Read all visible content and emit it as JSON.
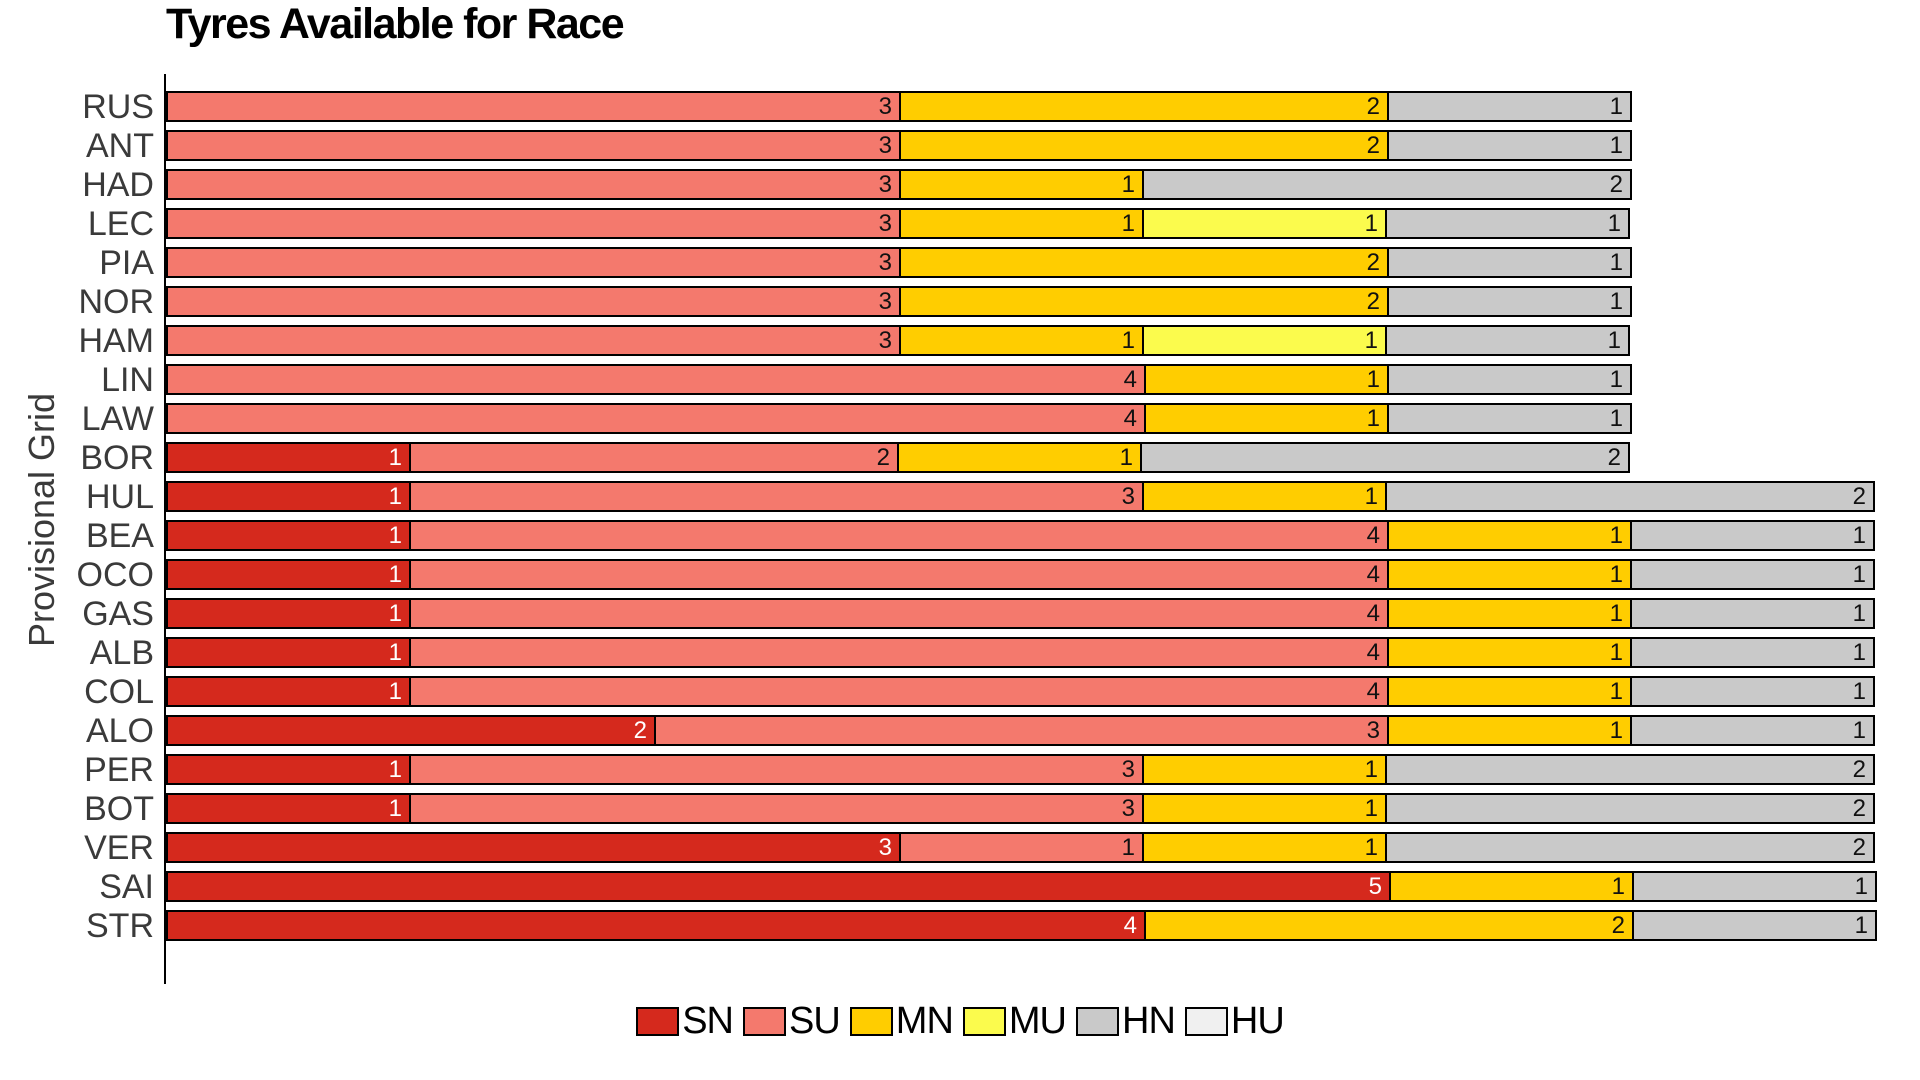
{
  "title": "Tyres Available for Race",
  "y_axis_label": "Provisional Grid",
  "legend": [
    {
      "code": "SN",
      "color": "#d5291d"
    },
    {
      "code": "SU",
      "color": "#f4796d"
    },
    {
      "code": "MN",
      "color": "#ffcd00"
    },
    {
      "code": "MU",
      "color": "#fbfb4d"
    },
    {
      "code": "HN",
      "color": "#c9c9c9"
    },
    {
      "code": "HU",
      "color": "#f0f0f0"
    }
  ],
  "chart_data": {
    "type": "bar",
    "orientation": "horizontal",
    "stacked": true,
    "title": "Tyres Available for Race",
    "ylabel": "Provisional Grid",
    "xlabel": "",
    "xlim": [
      0,
      7
    ],
    "grid": false,
    "legend_position": "bottom",
    "value_labels": "inside-end of each segment",
    "categories": [
      "RUS",
      "ANT",
      "HAD",
      "LEC",
      "PIA",
      "NOR",
      "HAM",
      "LIN",
      "LAW",
      "BOR",
      "HUL",
      "BEA",
      "OCO",
      "GAS",
      "ALB",
      "COL",
      "ALO",
      "PER",
      "BOT",
      "VER",
      "SAI",
      "STR"
    ],
    "series": [
      {
        "name": "SN",
        "color": "#d5291d",
        "label_color": "#ffffff",
        "values": [
          0,
          0,
          0,
          0,
          0,
          0,
          0,
          0,
          0,
          1,
          1,
          1,
          1,
          1,
          1,
          1,
          2,
          1,
          1,
          3,
          5,
          4
        ]
      },
      {
        "name": "SU",
        "color": "#f4796d",
        "label_color": "#111111",
        "values": [
          3,
          3,
          3,
          3,
          3,
          3,
          3,
          4,
          4,
          2,
          3,
          4,
          4,
          4,
          4,
          4,
          3,
          3,
          3,
          1,
          0,
          0
        ]
      },
      {
        "name": "MN",
        "color": "#ffcd00",
        "label_color": "#111111",
        "values": [
          2,
          2,
          1,
          1,
          2,
          2,
          1,
          1,
          1,
          1,
          1,
          1,
          1,
          1,
          1,
          1,
          1,
          1,
          1,
          1,
          1,
          2
        ]
      },
      {
        "name": "MU",
        "color": "#fbfb4d",
        "label_color": "#111111",
        "values": [
          0,
          0,
          0,
          1,
          0,
          0,
          1,
          0,
          0,
          0,
          0,
          0,
          0,
          0,
          0,
          0,
          0,
          0,
          0,
          0,
          0,
          0
        ]
      },
      {
        "name": "HN",
        "color": "#c9c9c9",
        "label_color": "#111111",
        "values": [
          1,
          1,
          2,
          1,
          1,
          1,
          1,
          1,
          1,
          2,
          2,
          1,
          1,
          1,
          1,
          1,
          1,
          2,
          2,
          2,
          1,
          1
        ]
      },
      {
        "name": "HU",
        "color": "#f0f0f0",
        "label_color": "#111111",
        "values": [
          0,
          0,
          0,
          0,
          0,
          0,
          0,
          0,
          0,
          0,
          0,
          0,
          0,
          0,
          0,
          0,
          0,
          0,
          0,
          0,
          0,
          0
        ]
      }
    ]
  }
}
